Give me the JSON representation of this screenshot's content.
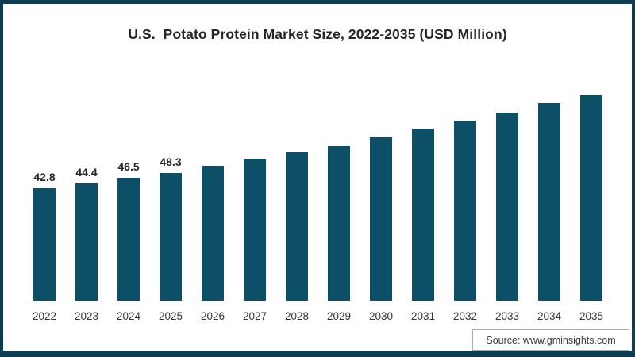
{
  "header": {
    "title": "U.S.  Potato Protein Market Size, 2022-2035 (USD Million)"
  },
  "source": {
    "label": "Source: www.gminsights.com"
  },
  "colors": {
    "bar": "#0e4f68",
    "frame_border": "#0d3d52",
    "axis_line": "#d9d9d9",
    "title_text": "#262626",
    "label_text": "#333333"
  },
  "chart_data": {
    "type": "bar",
    "title": "U.S.  Potato Protein Market Size, 2022-2035 (USD Million)",
    "xlabel": "",
    "ylabel": "USD Million",
    "categories": [
      "2022",
      "2023",
      "2024",
      "2025",
      "2026",
      "2027",
      "2028",
      "2029",
      "2030",
      "2031",
      "2032",
      "2033",
      "2034",
      "2035"
    ],
    "values": [
      42.8,
      44.4,
      46.5,
      48.3,
      51.2,
      53.8,
      56.3,
      58.8,
      62.0,
      65.2,
      68.4,
      71.4,
      74.9,
      78.0
    ],
    "labeled_points": {
      "2022": "42.8",
      "2023": "44.4",
      "2024": "46.5",
      "2025": "48.3"
    },
    "ylim": [
      0,
      84
    ],
    "grid": false,
    "legend": false,
    "bar_color": "#0e4f68",
    "annotations": [
      "Source: www.gminsights.com"
    ]
  }
}
